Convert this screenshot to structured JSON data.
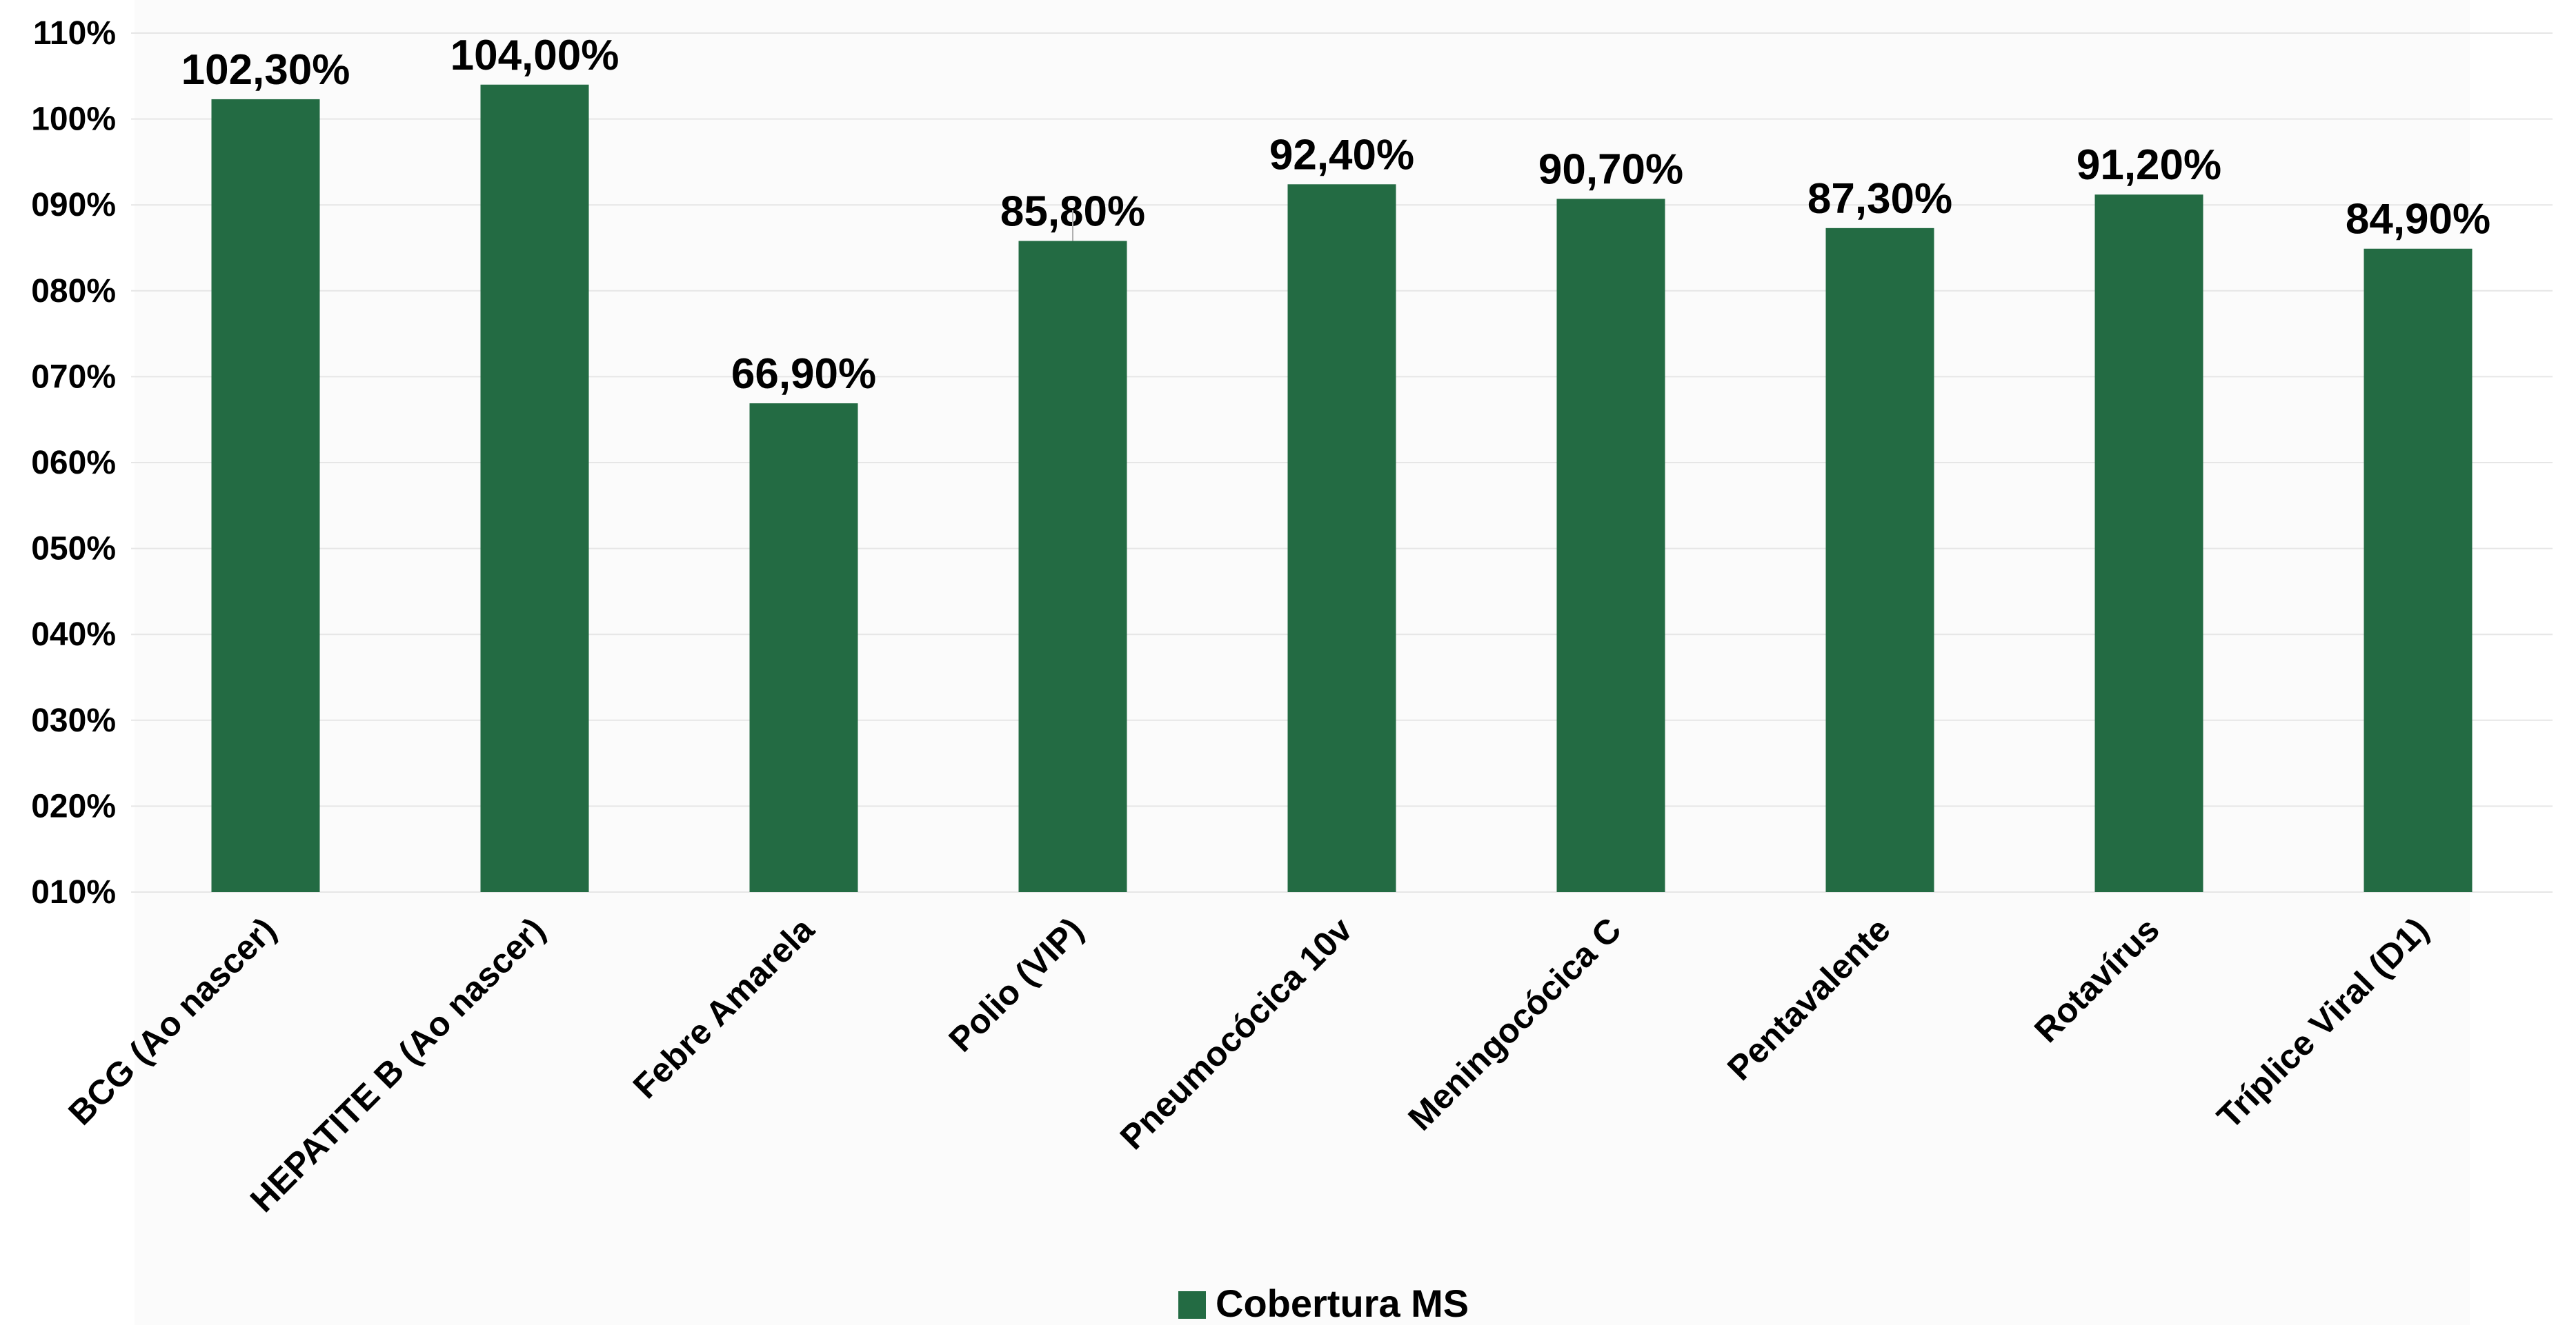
{
  "chart_data": {
    "type": "bar",
    "categories": [
      "BCG (Ao nascer)",
      "HEPATITE B (Ao nascer)",
      "Febre Amarela",
      "Polio (VIP)",
      "Pneumocócica 10v",
      "Meningocócica C",
      "Pentavalente",
      "Rotavírus",
      "Tríplice Viral (D1)"
    ],
    "series": [
      {
        "name": "Cobertura MS",
        "values": [
          102.3,
          104.0,
          66.9,
          85.8,
          92.4,
          90.7,
          87.3,
          91.2,
          84.9
        ],
        "labels": [
          "102,30%",
          "104,00%",
          "66,90%",
          "85,80%",
          "92,40%",
          "90,70%",
          "87,30%",
          "91,20%",
          "84,90%"
        ],
        "color": "#236B43"
      }
    ],
    "ylim": [
      10,
      110
    ],
    "y_ticks": [
      10,
      20,
      30,
      40,
      50,
      60,
      70,
      80,
      90,
      100,
      110
    ],
    "y_tick_labels": [
      "010%",
      "020%",
      "030%",
      "040%",
      "050%",
      "060%",
      "070%",
      "080%",
      "090%",
      "100%",
      "110%"
    ],
    "grid": true,
    "legend_position": "bottom-center"
  },
  "colors": {
    "bar": "#236B43",
    "grid": "#e6e6e6"
  }
}
